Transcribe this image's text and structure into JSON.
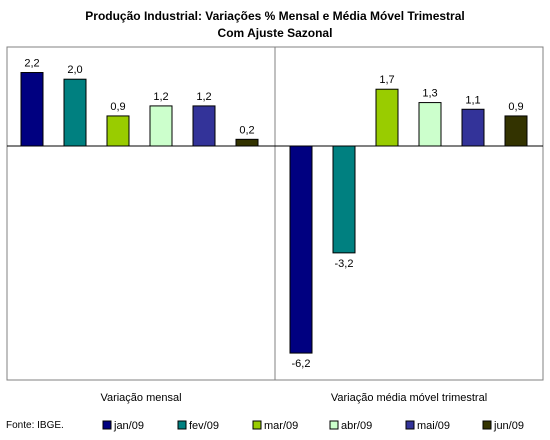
{
  "chart_data": {
    "type": "bar",
    "title": "Produção Industrial: Variações % Mensal e Média Móvel Trimestral",
    "subtitle": "Com Ajuste Sazonal",
    "categories": [
      "Variação mensal",
      "Variação média móvel trimestral"
    ],
    "series": [
      {
        "name": "jan/09",
        "color": "#000080",
        "values": [
          2.2,
          -6.2
        ],
        "labels": [
          "2,2",
          "-6,2"
        ]
      },
      {
        "name": "fev/09",
        "color": "#008080",
        "values": [
          2.0,
          -3.2
        ],
        "labels": [
          "2,0",
          "-3,2"
        ]
      },
      {
        "name": "mar/09",
        "color": "#99cc00",
        "values": [
          0.9,
          1.7
        ],
        "labels": [
          "0,9",
          "1,7"
        ]
      },
      {
        "name": "abr/09",
        "color": "#ccffcc",
        "values": [
          1.2,
          1.3
        ],
        "labels": [
          "1,2",
          "1,3"
        ]
      },
      {
        "name": "mai/09",
        "color": "#333399",
        "values": [
          1.2,
          1.1
        ],
        "labels": [
          "1,2",
          "1,1"
        ]
      },
      {
        "name": "jun/09",
        "color": "#333300",
        "values": [
          0.2,
          0.9
        ],
        "labels": [
          "0,2",
          "0,9"
        ]
      }
    ],
    "ylim": [
      -6.9,
      3.0
    ],
    "grid": false,
    "legend": "bottom",
    "source": "Fonte: IBGE."
  }
}
